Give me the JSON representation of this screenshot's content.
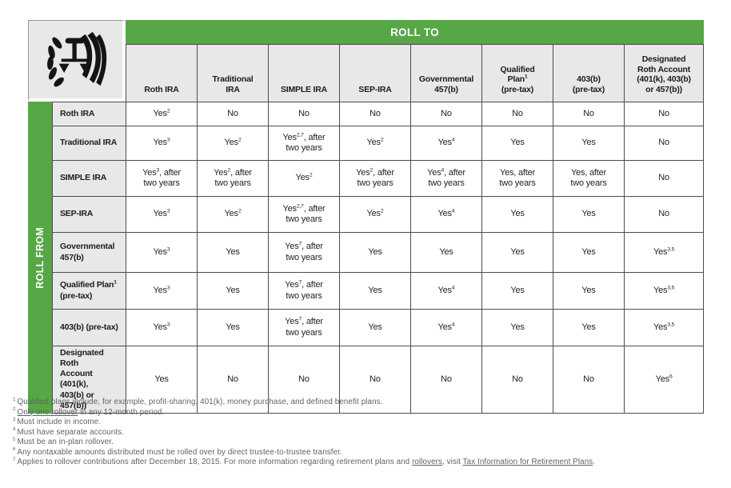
{
  "colors": {
    "green": "#58a747",
    "header_bg": "#e8e8e6",
    "border": "#4c4d4f",
    "footnote_text": "#5e6265",
    "banner_text": "#ffffff"
  },
  "table": {
    "roll_to_label": "ROLL TO",
    "roll_from_label": "ROLL FROM",
    "columns": [
      "Roth IRA",
      "Traditional\nIRA",
      "SIMPLE IRA",
      "SEP-IRA",
      "Governmental\n457(b)",
      "Qualified\nPlan^{1}\n(pre-tax)",
      "403(b)\n(pre-tax)",
      "Designated\nRoth Account\n(401(k), 403(b)\nor 457(b))"
    ],
    "rows": [
      {
        "header": "Roth IRA",
        "cells": [
          "Yes^{2}",
          "No",
          "No",
          "No",
          "No",
          "No",
          "No",
          "No"
        ]
      },
      {
        "header": "Traditional IRA",
        "cells": [
          "Yes^{3}",
          "Yes^{2}",
          "Yes^{2,7}, after\ntwo years",
          "Yes^{2}",
          "Yes^{4}",
          "Yes",
          "Yes",
          "No"
        ]
      },
      {
        "header": "SIMPLE IRA",
        "cells": [
          "Yes^{3}, after\ntwo years",
          "Yes^{2}, after\ntwo years",
          "Yes^{2}",
          "Yes^{2}, after\ntwo years",
          "Yes^{4}, after\ntwo years",
          "Yes, after\ntwo years",
          "Yes, after\ntwo years",
          "No"
        ]
      },
      {
        "header": "SEP-IRA",
        "cells": [
          "Yes^{3}",
          "Yes^{2}",
          "Yes^{2,7}, after\ntwo years",
          "Yes^{2}",
          "Yes^{4}",
          "Yes",
          "Yes",
          "No"
        ]
      },
      {
        "header": "Governmental\n457(b)",
        "cells": [
          "Yes^{3}",
          "Yes",
          "Yes^{7}, after\ntwo years",
          "Yes",
          "Yes",
          "Yes",
          "Yes",
          "Yes^{3,5}"
        ]
      },
      {
        "header": "Qualified Plan^{1}\n(pre-tax)",
        "cells": [
          "Yes^{3}",
          "Yes",
          "Yes^{7}, after\ntwo years",
          "Yes",
          "Yes^{4}",
          "Yes",
          "Yes",
          "Yes^{3,5}"
        ]
      },
      {
        "header": "403(b) (pre-tax)",
        "cells": [
          "Yes^{3}",
          "Yes",
          "Yes^{7}, after\ntwo years",
          "Yes",
          "Yes^{4}",
          "Yes",
          "Yes",
          "Yes^{3,5}"
        ]
      },
      {
        "header": "Designated Roth\nAccount (401(k),\n403(b) or 457(b))",
        "cells": [
          "Yes",
          "No",
          "No",
          "No",
          "No",
          "No",
          "No",
          "Yes^{6}"
        ]
      }
    ]
  },
  "footnotes": [
    {
      "sup": "1",
      "parts": [
        {
          "text": "Qualified plans include, for example, profit-sharing, 401(k), money purchase, and defined benefit plans."
        }
      ]
    },
    {
      "sup": "2",
      "parts": [
        {
          "text": "Only one rollover",
          "link": true
        },
        {
          "text": " in any 12-month period."
        }
      ]
    },
    {
      "sup": "3",
      "parts": [
        {
          "text": "Must include in income."
        }
      ]
    },
    {
      "sup": "4",
      "parts": [
        {
          "text": "Must have separate accounts."
        }
      ]
    },
    {
      "sup": "5",
      "parts": [
        {
          "text": "Must be an in-plan rollover."
        }
      ]
    },
    {
      "sup": "6",
      "parts": [
        {
          "text": "Any nontaxable amounts distributed must be rolled over by direct trustee-to-trustee transfer."
        }
      ]
    },
    {
      "sup": "7",
      "parts": [
        {
          "text": "Applies to rollover contributions after December 18, 2015. For more information regarding retirement plans and "
        },
        {
          "text": "rollovers",
          "link": true
        },
        {
          "text": ", visit "
        },
        {
          "text": "Tax Information for Retirement Plans",
          "link": true
        },
        {
          "text": "."
        }
      ]
    }
  ],
  "logo": {
    "name": "IRS eagle emblem"
  }
}
